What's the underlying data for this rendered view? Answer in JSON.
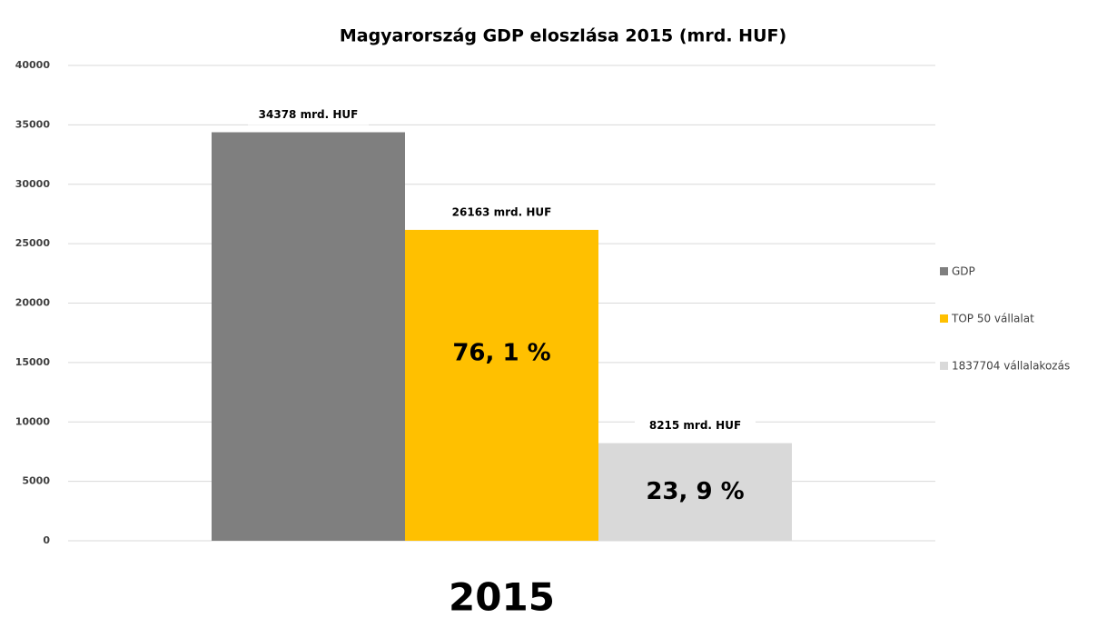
{
  "chart_data": {
    "type": "bar",
    "title": "Magyarország GDP eloszlása 2015 (mrd. HUF)",
    "categories": [
      "2015"
    ],
    "series": [
      {
        "name": "GDP",
        "color": "#7f7f7f",
        "values": [
          34378
        ],
        "value_labels": [
          "34378 mrd. HUF"
        ]
      },
      {
        "name": "TOP 50 vállalat",
        "color": "#ffc000",
        "values": [
          26163
        ],
        "value_labels": [
          "26163 mrd. HUF"
        ]
      },
      {
        "name": "1837704 vállalakozás",
        "color": "#d9d9d9",
        "values": [
          8215
        ],
        "value_labels": [
          "8215 mrd. HUF"
        ]
      }
    ],
    "annotations": [
      "76, 1 %",
      "23, 9 %"
    ],
    "ylim": [
      0,
      40000
    ],
    "yticks": [
      0,
      5000,
      10000,
      15000,
      20000,
      25000,
      30000,
      35000,
      40000
    ],
    "grid": true,
    "legend": "right"
  }
}
